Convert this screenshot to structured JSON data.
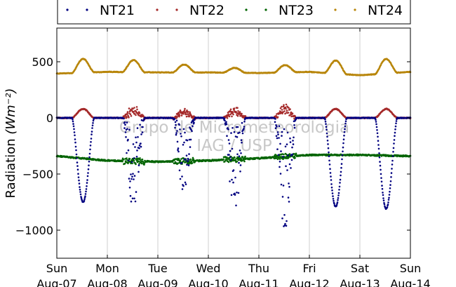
{
  "chart_data": {
    "type": "scatter",
    "title": "",
    "ylabel": "Radiation",
    "ylabel_unit": "(Wm⁻²)",
    "ylim": [
      -1250,
      800
    ],
    "yticks": [
      500,
      0,
      -500,
      -1000
    ],
    "ytick_labels": [
      "500",
      "0",
      "−500",
      "−1000"
    ],
    "xlim": [
      0,
      7
    ],
    "x_ticks": [
      0,
      1,
      2,
      3,
      4,
      5,
      6,
      7
    ],
    "x_tick_labels": [
      {
        "day": "Sun",
        "date": "Aug-07"
      },
      {
        "day": "Mon",
        "date": "Aug-08"
      },
      {
        "day": "Tue",
        "date": "Aug-09"
      },
      {
        "day": "Wed",
        "date": "Aug-10"
      },
      {
        "day": "Thu",
        "date": "Aug-11"
      },
      {
        "day": "Fri",
        "date": "Aug-12"
      },
      {
        "day": "Sat",
        "date": "Aug-13"
      },
      {
        "day": "Sun",
        "date": "Aug-14"
      }
    ],
    "grid": "vertical",
    "legend_position": "top",
    "watermark": [
      "Grupo de Micrometeorologia",
      "IAG / USP"
    ],
    "series": [
      {
        "name": "NT21",
        "color": "#000080",
        "day_peaks": [
          -750,
          -800,
          -670,
          -830,
          -970,
          -790,
          -810
        ],
        "noisy": [
          false,
          true,
          true,
          true,
          true,
          false,
          false
        ]
      },
      {
        "name": "NT22",
        "color": "#a52a2a",
        "day_peaks": [
          80,
          85,
          65,
          75,
          100,
          80,
          80
        ],
        "noisy": [
          false,
          true,
          true,
          true,
          true,
          false,
          false
        ]
      },
      {
        "name": "NT23",
        "color": "#006400",
        "daily_base": [
          -340,
          -380,
          -390,
          -380,
          -360,
          -330,
          -330,
          -340
        ]
      },
      {
        "name": "NT24",
        "color": "#b8860b",
        "night_base": [
          395,
          410,
          405,
          405,
          400,
          410,
          380,
          410
        ],
        "day_peaks": [
          525,
          515,
          475,
          445,
          470,
          510,
          525
        ]
      }
    ]
  }
}
